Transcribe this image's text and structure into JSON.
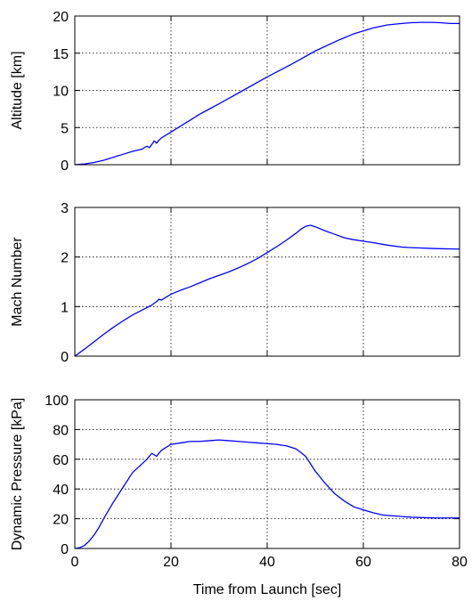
{
  "chart_data": [
    {
      "type": "line",
      "title": "",
      "xlabel": "",
      "ylabel": "Altitude [km]",
      "xlim": [
        0,
        80
      ],
      "ylim": [
        0,
        20
      ],
      "xticks": [
        0,
        20,
        40,
        60,
        80
      ],
      "yticks": [
        0,
        5,
        10,
        15,
        20
      ],
      "xtick_labels_shown": false,
      "grid": true,
      "legend": "none",
      "series": [
        {
          "color": "#0000ff",
          "x": [
            0,
            2,
            4,
            6,
            8,
            10,
            12,
            14,
            15,
            15.5,
            16,
            16.5,
            17,
            17.5,
            18,
            19,
            20,
            22,
            24,
            26,
            28,
            30,
            35,
            40,
            45,
            50,
            55,
            58,
            60,
            62,
            65,
            68,
            70,
            72,
            74,
            76,
            78,
            80
          ],
          "y": [
            0,
            0.1,
            0.3,
            0.6,
            1.0,
            1.4,
            1.8,
            2.1,
            2.5,
            2.3,
            2.7,
            3.2,
            2.9,
            3.3,
            3.6,
            4.0,
            4.4,
            5.2,
            6.0,
            6.8,
            7.5,
            8.2,
            10.0,
            11.8,
            13.5,
            15.3,
            16.8,
            17.6,
            18.0,
            18.4,
            18.8,
            19.0,
            19.1,
            19.15,
            19.15,
            19.1,
            19.0,
            19.0
          ]
        }
      ]
    },
    {
      "type": "line",
      "title": "",
      "xlabel": "",
      "ylabel": "Mach Number",
      "xlim": [
        0,
        80
      ],
      "ylim": [
        0,
        3
      ],
      "xticks": [
        0,
        20,
        40,
        60,
        80
      ],
      "yticks": [
        0,
        1,
        2,
        3
      ],
      "xtick_labels_shown": false,
      "grid": true,
      "legend": "none",
      "series": [
        {
          "color": "#0000ff",
          "x": [
            0,
            2,
            4,
            6,
            8,
            10,
            12,
            14,
            16,
            17,
            17.5,
            18,
            20,
            22,
            24,
            26,
            28,
            30,
            32,
            34,
            36,
            38,
            40,
            42,
            44,
            46,
            47,
            48,
            49,
            50,
            52,
            54,
            56,
            58,
            60,
            62,
            65,
            68,
            70,
            75,
            80
          ],
          "y": [
            0,
            0.14,
            0.29,
            0.44,
            0.58,
            0.71,
            0.83,
            0.93,
            1.03,
            1.1,
            1.15,
            1.13,
            1.25,
            1.33,
            1.4,
            1.48,
            1.56,
            1.63,
            1.7,
            1.78,
            1.87,
            1.97,
            2.09,
            2.21,
            2.34,
            2.48,
            2.56,
            2.62,
            2.64,
            2.61,
            2.53,
            2.46,
            2.39,
            2.35,
            2.32,
            2.29,
            2.24,
            2.2,
            2.19,
            2.17,
            2.16
          ]
        }
      ]
    },
    {
      "type": "line",
      "title": "",
      "xlabel": "Time from Launch [sec]",
      "ylabel": "Dynamic Pressure [kPa]",
      "xlim": [
        0,
        80
      ],
      "ylim": [
        0,
        100
      ],
      "xticks": [
        0,
        20,
        40,
        60,
        80
      ],
      "yticks": [
        0,
        20,
        40,
        60,
        80,
        100
      ],
      "xtick_labels_shown": true,
      "grid": true,
      "legend": "none",
      "series": [
        {
          "color": "#0000ff",
          "x": [
            0,
            1,
            2,
            3,
            4,
            5,
            6,
            8,
            10,
            12,
            14,
            15,
            16,
            17,
            18,
            19,
            20,
            22,
            24,
            26,
            28,
            30,
            32,
            34,
            36,
            38,
            40,
            42,
            44,
            46,
            48,
            50,
            52,
            54,
            56,
            58,
            60,
            62,
            64,
            66,
            68,
            70,
            75,
            80
          ],
          "y": [
            0,
            0.5,
            2,
            5,
            9,
            14,
            20,
            31,
            41,
            51,
            57,
            60,
            64,
            62,
            66,
            68,
            70,
            71,
            72,
            72,
            72.5,
            73,
            72.5,
            72,
            71.5,
            71,
            70.5,
            70,
            69,
            67,
            62,
            52,
            44,
            37,
            32,
            28,
            26,
            24,
            22.5,
            22,
            21.5,
            21,
            20.5,
            20.5
          ]
        }
      ]
    }
  ]
}
